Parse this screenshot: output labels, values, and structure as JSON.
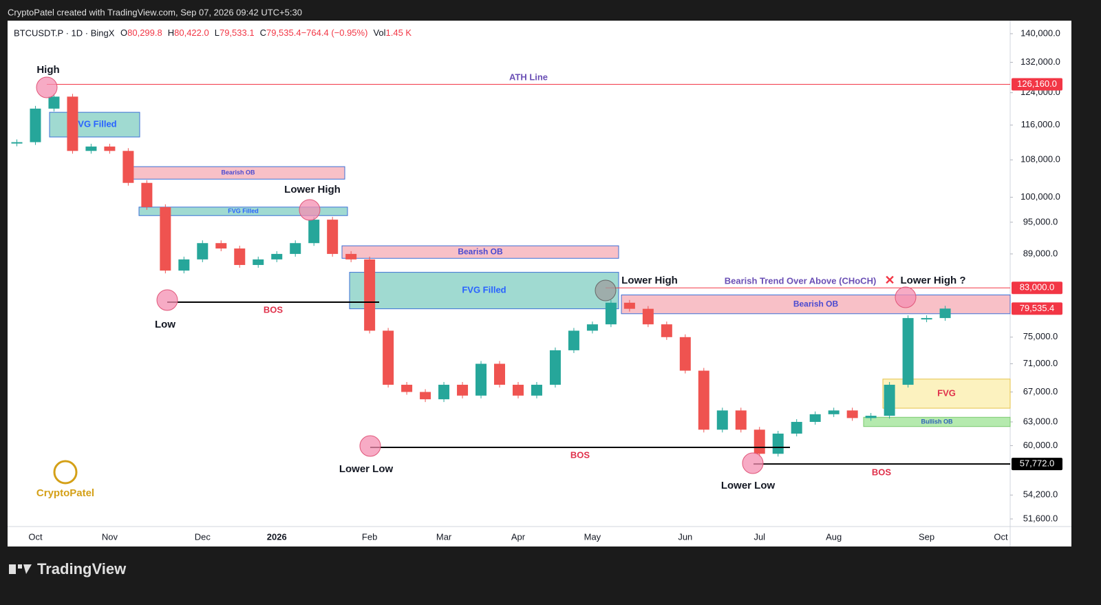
{
  "top_bar": "CryptoPatel created with TradingView.com, Sep 07, 2026 09:42 UTC+5:30",
  "footer_brand": "TradingView",
  "watermark": "CryptoPatel",
  "chart_data": {
    "type": "candlestick",
    "symbol": "BTCUSDT.P · 1D · BingX",
    "ohlc_header": [
      {
        "key": "O",
        "value": "80,299.8"
      },
      {
        "key": "H",
        "value": "80,422.0"
      },
      {
        "key": "L",
        "value": "79,533.1"
      },
      {
        "key": "C",
        "value": "79,535.4"
      },
      {
        "key": "",
        "value": "−764.4 (−0.95%)"
      },
      {
        "key": "Vol",
        "value": "1.45 K"
      }
    ],
    "categories": [
      null,
      "Oct",
      null,
      null,
      null,
      "Nov",
      null,
      null,
      null,
      null,
      "Dec",
      null,
      null,
      null,
      "2026",
      null,
      null,
      null,
      null,
      "Feb",
      null,
      null,
      null,
      "Mar",
      null,
      null,
      null,
      "Apr",
      null,
      null,
      null,
      "May",
      null,
      null,
      null,
      null,
      "Jun",
      null,
      null,
      null,
      "Jul",
      null,
      null,
      null,
      "Aug",
      null,
      null,
      null,
      null,
      "Sep",
      null,
      null,
      null,
      "Oct"
    ],
    "values": [
      112000,
      120000,
      123000,
      110000,
      111000,
      110000,
      103000,
      98000,
      86000,
      88000,
      91000,
      90000,
      87000,
      88000,
      89000,
      91000,
      95500,
      89000,
      88000,
      76000,
      68000,
      67000,
      66000,
      68000,
      66500,
      71000,
      68000,
      66500,
      68000,
      73000,
      76000,
      77000,
      80500,
      79500,
      77000,
      75000,
      70000,
      62000,
      64500,
      62000,
      59000,
      61500,
      63000,
      64000,
      64500,
      63500,
      63800,
      68000,
      78000,
      78000,
      79535.4,
      null,
      null,
      null
    ],
    "up_color": "#26a69a",
    "down_color": "#ef5350",
    "log_scale": true,
    "ylim": [
      50800,
      143600
    ],
    "yticks": [
      {
        "value": 140000,
        "label": "140,000.0"
      },
      {
        "value": 132000,
        "label": "132,000.0"
      },
      {
        "value": 124000,
        "label": "124,000.0"
      },
      {
        "value": 116000,
        "label": "116,000.0"
      },
      {
        "value": 108000,
        "label": "108,000.0"
      },
      {
        "value": 100000,
        "label": "100,000.0"
      },
      {
        "value": 95000,
        "label": "95,000.0"
      },
      {
        "value": 89000,
        "label": "89,000.0"
      },
      {
        "value": 75000,
        "label": "75,000.0"
      },
      {
        "value": 71000,
        "label": "71,000.0"
      },
      {
        "value": 67000,
        "label": "67,000.0"
      },
      {
        "value": 63000,
        "label": "63,000.0"
      },
      {
        "value": 60000,
        "label": "60,000.0"
      },
      {
        "value": 54200,
        "label": "54,200.0"
      },
      {
        "value": 51600,
        "label": "51,600.0"
      }
    ],
    "price_labels": [
      {
        "value": 126160,
        "label": "126,160.0",
        "color": "#f23645"
      },
      {
        "value": 83000,
        "label": "83,000.0",
        "color": "#f23645"
      },
      {
        "value": 79535.4,
        "label": "79,535.4",
        "color": "#f23645"
      },
      {
        "value": 57772,
        "label": "57,772.0",
        "color": "#000000"
      }
    ],
    "zones": [
      {
        "label": "FVG Filled",
        "range": [
          113200,
          119100
        ],
        "color": "#8fd3c9"
      },
      {
        "label": "Bearish OB",
        "range": [
          103800,
          106500
        ],
        "color": "#f7b5bd"
      },
      {
        "label": "FVG Filled",
        "range": [
          96300,
          98000
        ],
        "color": "#8fd3c9"
      },
      {
        "label": "Bearish OB",
        "range": [
          88200,
          90500
        ],
        "color": "#f7b5bd"
      },
      {
        "label": "FVG Filled",
        "range": [
          79500,
          85700
        ],
        "color": "#8fd3c9"
      },
      {
        "label": "Bearish OB",
        "range": [
          78700,
          81800
        ],
        "color": "#f7b5bd"
      },
      {
        "label": "FVG",
        "range": [
          64800,
          68800
        ],
        "color": "#fbf0b4"
      },
      {
        "label": "Bullish OB",
        "range": [
          62400,
          63600
        ],
        "color": "#a8e6a0"
      }
    ],
    "annotations": [
      "High",
      "ATH Line",
      "Lower High",
      "Low",
      "BOS",
      "Lower Low",
      "BOS",
      "Lower High",
      "Bearish Trend Over Above (CHoCH)",
      "Lower High ?",
      "Lower Low",
      "BOS",
      "✕"
    ]
  }
}
